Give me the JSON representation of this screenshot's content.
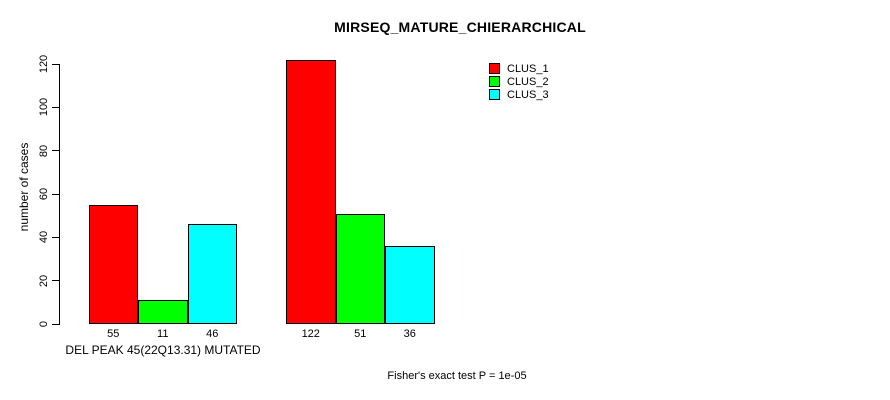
{
  "chart_data": {
    "type": "bar",
    "title": "MIRSEQ_MATURE_CHIERARCHICAL",
    "ylabel": "number of cases",
    "xlabel": "",
    "ylim": [
      0,
      120
    ],
    "yticks": [
      0,
      20,
      40,
      60,
      80,
      100,
      120
    ],
    "categories": [
      "DEL PEAK 45(22Q13.31) MUTATED",
      ""
    ],
    "series": [
      {
        "name": "CLUS_1",
        "color": "#FF0000",
        "values": [
          55,
          122
        ]
      },
      {
        "name": "CLUS_2",
        "color": "#00FF00",
        "values": [
          11,
          51
        ]
      },
      {
        "name": "CLUS_3",
        "color": "#00FFFF",
        "values": [
          46,
          36
        ]
      }
    ],
    "bar_value_labels": true,
    "bar_border_color": "#000000",
    "annotation": "Fisher's exact test P = 1e-05",
    "legend": {
      "position": "top-right",
      "entries": [
        "CLUS_1",
        "CLUS_2",
        "CLUS_3"
      ]
    },
    "grid": false,
    "background": "#FFFFFF"
  }
}
